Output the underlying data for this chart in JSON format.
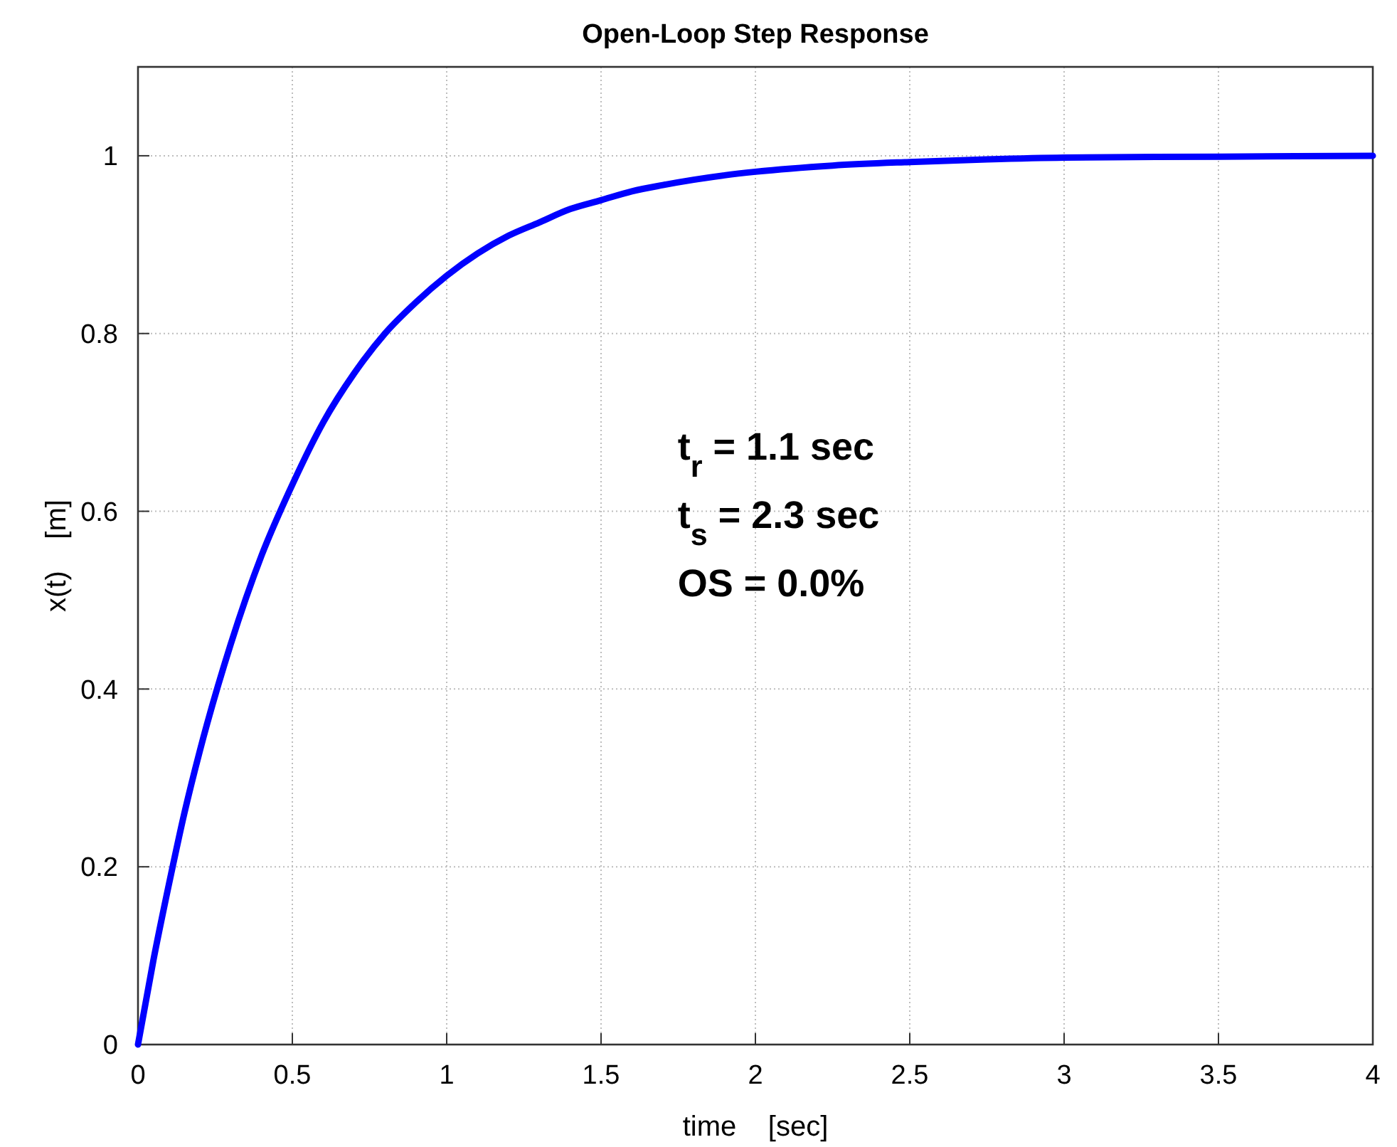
{
  "chart_data": {
    "type": "line",
    "title": "Open-Loop Step Response",
    "xlabel": "time    [sec]",
    "ylabel": "x(t)    [m]",
    "x": [
      0,
      0.05,
      0.1,
      0.15,
      0.2,
      0.3,
      0.4,
      0.5,
      0.6,
      0.7,
      0.8,
      0.9,
      1,
      1.1,
      1.2,
      1.3,
      1.4,
      1.5,
      1.6,
      1.7,
      1.8,
      1.9,
      2,
      2.25,
      2.5,
      2.75,
      3,
      3.5,
      4
    ],
    "series": [
      {
        "color": "#0000ff",
        "values": [
          0,
          0.095,
          0.18,
          0.26,
          0.33,
          0.45,
          0.55,
          0.63,
          0.7,
          0.755,
          0.8,
          0.835,
          0.865,
          0.89,
          0.91,
          0.925,
          0.94,
          0.95,
          0.96,
          0.967,
          0.973,
          0.978,
          0.982,
          0.989,
          0.993,
          0.996,
          0.998,
          0.999,
          1
        ]
      }
    ],
    "xlim": [
      0,
      4
    ],
    "ylim": [
      0,
      1.1
    ],
    "xticks": [
      0,
      0.5,
      1,
      1.5,
      2,
      2.5,
      3,
      3.5,
      4
    ],
    "yticks": [
      0,
      0.2,
      0.4,
      0.6,
      0.8,
      1
    ],
    "grid": true,
    "line_style": "solid",
    "annotations": [
      "t$_{r}$ = 1.1 sec",
      "t$_{s}$ = 2.3 sec",
      "OS = 0.0%"
    ]
  }
}
